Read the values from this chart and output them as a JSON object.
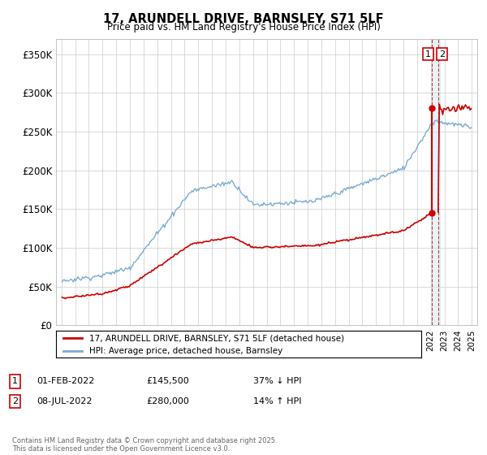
{
  "title": "17, ARUNDELL DRIVE, BARNSLEY, S71 5LF",
  "subtitle": "Price paid vs. HM Land Registry's House Price Index (HPI)",
  "legend_label_red": "17, ARUNDELL DRIVE, BARNSLEY, S71 5LF (detached house)",
  "legend_label_blue": "HPI: Average price, detached house, Barnsley",
  "annotation1_num": "1",
  "annotation1_date": "01-FEB-2022",
  "annotation1_price": "£145,500",
  "annotation1_hpi": "37% ↓ HPI",
  "annotation2_num": "2",
  "annotation2_date": "08-JUL-2022",
  "annotation2_price": "£280,000",
  "annotation2_hpi": "14% ↑ HPI",
  "footnote": "Contains HM Land Registry data © Crown copyright and database right 2025.\nThis data is licensed under the Open Government Licence v3.0.",
  "ylim_min": 0,
  "ylim_max": 370000,
  "year_start": 1995,
  "year_end": 2025,
  "red_color": "#cc0000",
  "blue_color": "#7aadd4",
  "vline_color": "#cc0000",
  "vband_color": "#d0e8f0",
  "background_color": "#ffffff",
  "grid_color": "#cccccc",
  "t1": 2022.083,
  "t2": 2022.542,
  "price1": 145500,
  "price2": 280000
}
